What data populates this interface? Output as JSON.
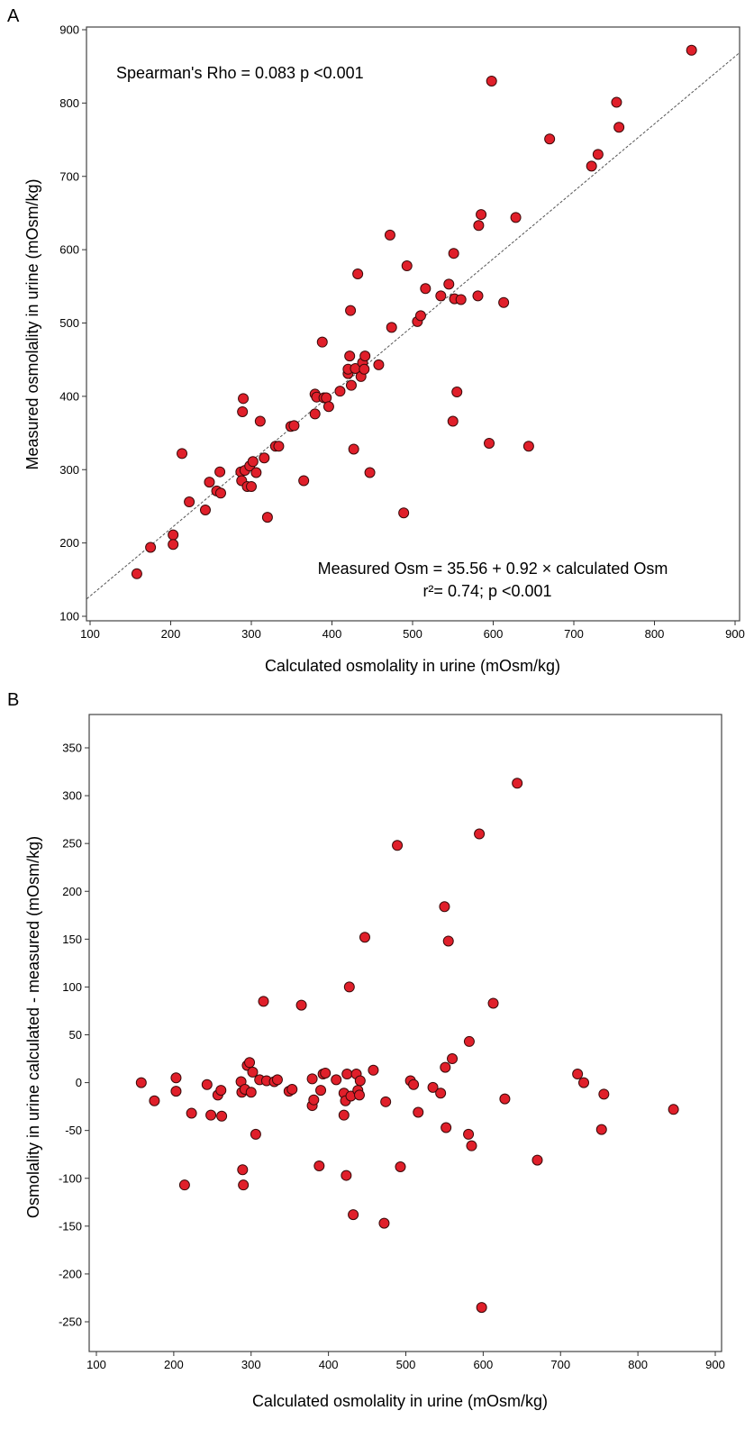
{
  "chart_data": [
    {
      "panel_label": "A",
      "type": "scatter",
      "xlabel": "Calculated osmolality in urine (mOsm/kg)",
      "ylabel": "Measured osmolality in urine (mOsm/kg)",
      "xlim": [
        100,
        900
      ],
      "ylim": [
        100,
        900
      ],
      "xticks": [
        100,
        200,
        300,
        400,
        500,
        600,
        700,
        800,
        900
      ],
      "yticks": [
        100,
        200,
        300,
        400,
        500,
        600,
        700,
        800,
        900
      ],
      "annotations": {
        "correlation": "Spearman's Rho = 0.083 p <0.001",
        "equation": "Measured Osm = 35.56 + 0.92 × calculated Osm",
        "r2": "r²= 0.74; p <0.001"
      },
      "regression": {
        "intercept": 35.56,
        "slope": 0.92
      },
      "points": [
        [
          158,
          158
        ],
        [
          175,
          194
        ],
        [
          203,
          211
        ],
        [
          203,
          198
        ],
        [
          214,
          322
        ],
        [
          223,
          256
        ],
        [
          243,
          245
        ],
        [
          248,
          283
        ],
        [
          257,
          271
        ],
        [
          261,
          297
        ],
        [
          262,
          268
        ],
        [
          287,
          297
        ],
        [
          289,
          379
        ],
        [
          290,
          397
        ],
        [
          288,
          285
        ],
        [
          292,
          299
        ],
        [
          295,
          277
        ],
        [
          298,
          305
        ],
        [
          300,
          277
        ],
        [
          302,
          311
        ],
        [
          306,
          296
        ],
        [
          311,
          366
        ],
        [
          316,
          316
        ],
        [
          320,
          235
        ],
        [
          330,
          332
        ],
        [
          334,
          332
        ],
        [
          349,
          359
        ],
        [
          353,
          360
        ],
        [
          365,
          285
        ],
        [
          379,
          376
        ],
        [
          379,
          403
        ],
        [
          381,
          399
        ],
        [
          388,
          474
        ],
        [
          390,
          398
        ],
        [
          393,
          398
        ],
        [
          396,
          386
        ],
        [
          410,
          407
        ],
        [
          420,
          431
        ],
        [
          420,
          437
        ],
        [
          422,
          455
        ],
        [
          423,
          517
        ],
        [
          424,
          415
        ],
        [
          427,
          328
        ],
        [
          429,
          438
        ],
        [
          432,
          567
        ],
        [
          436,
          427
        ],
        [
          438,
          446
        ],
        [
          441,
          455
        ],
        [
          440,
          437
        ],
        [
          447,
          296
        ],
        [
          458,
          443
        ],
        [
          472,
          620
        ],
        [
          474,
          494
        ],
        [
          489,
          241
        ],
        [
          493,
          578
        ],
        [
          506,
          502
        ],
        [
          510,
          510
        ],
        [
          516,
          547
        ],
        [
          535,
          537
        ],
        [
          545,
          553
        ],
        [
          550,
          366
        ],
        [
          551,
          595
        ],
        [
          552,
          533
        ],
        [
          555,
          406
        ],
        [
          560,
          532
        ],
        [
          581,
          537
        ],
        [
          582,
          633
        ],
        [
          585,
          648
        ],
        [
          595,
          336
        ],
        [
          598,
          830
        ],
        [
          613,
          528
        ],
        [
          628,
          644
        ],
        [
          644,
          332
        ],
        [
          670,
          751
        ],
        [
          722,
          714
        ],
        [
          730,
          730
        ],
        [
          753,
          801
        ],
        [
          756,
          767
        ],
        [
          846,
          872
        ]
      ]
    },
    {
      "panel_label": "B",
      "type": "scatter",
      "xlabel": "Calculated osmolality in urine (mOsm/kg)",
      "ylabel": "Osmolality in urine calculated - measured (mOsm/kg)",
      "xlim": [
        100,
        900
      ],
      "ylim": [
        -290,
        380
      ],
      "xticks": [
        100,
        200,
        300,
        400,
        500,
        600,
        700,
        800,
        900
      ],
      "yticks": [
        -250,
        -200,
        -150,
        -100,
        -50,
        0,
        50,
        100,
        150,
        200,
        250,
        300,
        350
      ],
      "points": [
        [
          158,
          0
        ],
        [
          175,
          -19
        ],
        [
          203,
          5
        ],
        [
          203,
          -9
        ],
        [
          214,
          -107
        ],
        [
          223,
          -32
        ],
        [
          243,
          -2
        ],
        [
          248,
          -34
        ],
        [
          257,
          -13
        ],
        [
          261,
          -8
        ],
        [
          262,
          -35
        ],
        [
          287,
          1
        ],
        [
          289,
          -91
        ],
        [
          290,
          -107
        ],
        [
          288,
          -10
        ],
        [
          292,
          -7
        ],
        [
          295,
          18
        ],
        [
          298,
          21
        ],
        [
          300,
          -10
        ],
        [
          302,
          11
        ],
        [
          306,
          -54
        ],
        [
          311,
          3
        ],
        [
          316,
          85
        ],
        [
          320,
          2
        ],
        [
          330,
          1
        ],
        [
          334,
          3
        ],
        [
          349,
          -9
        ],
        [
          353,
          -7
        ],
        [
          365,
          81
        ],
        [
          379,
          4
        ],
        [
          379,
          -24
        ],
        [
          381,
          -18
        ],
        [
          388,
          -87
        ],
        [
          390,
          -8
        ],
        [
          393,
          9
        ],
        [
          396,
          10
        ],
        [
          410,
          3
        ],
        [
          420,
          -11
        ],
        [
          420,
          -34
        ],
        [
          422,
          -19
        ],
        [
          423,
          -97
        ],
        [
          424,
          9
        ],
        [
          427,
          100
        ],
        [
          429,
          -14
        ],
        [
          432,
          -138
        ],
        [
          436,
          9
        ],
        [
          438,
          -8
        ],
        [
          441,
          2
        ],
        [
          440,
          -13
        ],
        [
          447,
          152
        ],
        [
          458,
          13
        ],
        [
          472,
          -147
        ],
        [
          474,
          -20
        ],
        [
          489,
          248
        ],
        [
          493,
          -88
        ],
        [
          506,
          2
        ],
        [
          510,
          -2
        ],
        [
          516,
          -31
        ],
        [
          535,
          -5
        ],
        [
          545,
          -11
        ],
        [
          550,
          184
        ],
        [
          551,
          16
        ],
        [
          552,
          -47
        ],
        [
          555,
          148
        ],
        [
          560,
          25
        ],
        [
          581,
          -54
        ],
        [
          582,
          43
        ],
        [
          585,
          -66
        ],
        [
          595,
          260
        ],
        [
          598,
          -235
        ],
        [
          613,
          83
        ],
        [
          628,
          -17
        ],
        [
          644,
          313
        ],
        [
          670,
          -81
        ],
        [
          722,
          9
        ],
        [
          730,
          0
        ],
        [
          753,
          -49
        ],
        [
          756,
          -12
        ],
        [
          846,
          -28
        ]
      ]
    }
  ]
}
